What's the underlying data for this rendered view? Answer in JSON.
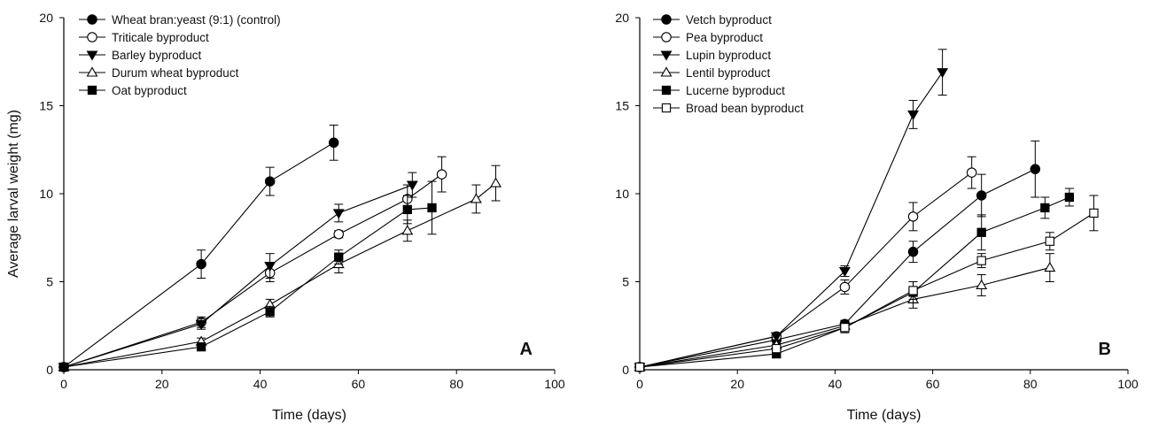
{
  "chart_data": [
    {
      "type": "line",
      "panel_label": "A",
      "xlabel": "Time (days)",
      "ylabel": "Average larval weight (mg)",
      "xlim": [
        0,
        100
      ],
      "ylim": [
        0,
        20
      ],
      "xticks": [
        0,
        20,
        40,
        60,
        80,
        100
      ],
      "yticks": [
        0,
        5,
        10,
        15,
        20
      ],
      "grid": false,
      "legend_position": "top-left",
      "series": [
        {
          "name": "Wheat bran:yeast (9:1) (control)",
          "marker": "circle-filled",
          "x": [
            0,
            28,
            42,
            55
          ],
          "y": [
            0.15,
            6.0,
            10.7,
            12.9
          ],
          "err": [
            0.1,
            0.8,
            0.8,
            1.0
          ]
        },
        {
          "name": "Triticale byproduct",
          "marker": "circle-open",
          "x": [
            0,
            28,
            42,
            56,
            70,
            77
          ],
          "y": [
            0.15,
            2.7,
            5.5,
            7.7,
            9.7,
            11.1
          ],
          "err": [
            0.1,
            0.3,
            0.5,
            0.2,
            0.8,
            1.0
          ]
        },
        {
          "name": "Barley byproduct",
          "marker": "triangle-down-filled",
          "x": [
            0,
            28,
            42,
            56,
            71
          ],
          "y": [
            0.15,
            2.6,
            5.9,
            8.9,
            10.5
          ],
          "err": [
            0.1,
            0.3,
            0.7,
            0.5,
            0.7
          ]
        },
        {
          "name": "Durum wheat byproduct",
          "marker": "triangle-up-open",
          "x": [
            0,
            28,
            42,
            56,
            70,
            84,
            88
          ],
          "y": [
            0.15,
            1.6,
            3.7,
            6.0,
            7.9,
            9.7,
            10.6
          ],
          "err": [
            0.1,
            0.2,
            0.3,
            0.5,
            0.6,
            0.8,
            1.0
          ]
        },
        {
          "name": "Oat byproduct",
          "marker": "square-filled",
          "x": [
            0,
            28,
            42,
            56,
            70,
            75
          ],
          "y": [
            0.15,
            1.3,
            3.3,
            6.4,
            9.1,
            9.2
          ],
          "err": [
            0.1,
            0.2,
            0.3,
            0.4,
            0.8,
            1.5
          ]
        }
      ]
    },
    {
      "type": "line",
      "panel_label": "B",
      "xlabel": "Time (days)",
      "ylabel": "",
      "xlim": [
        0,
        100
      ],
      "ylim": [
        0,
        20
      ],
      "xticks": [
        0,
        20,
        40,
        60,
        80,
        100
      ],
      "yticks": [
        0,
        5,
        10,
        15,
        20
      ],
      "grid": false,
      "legend_position": "top-left",
      "series": [
        {
          "name": "Vetch byproduct",
          "marker": "circle-filled",
          "x": [
            0,
            28,
            42,
            56,
            70,
            81
          ],
          "y": [
            0.15,
            1.7,
            2.6,
            6.7,
            9.9,
            11.4
          ],
          "err": [
            0.1,
            0.2,
            0.2,
            0.6,
            1.2,
            1.6
          ]
        },
        {
          "name": "Pea byproduct",
          "marker": "circle-open",
          "x": [
            0,
            28,
            42,
            56,
            68
          ],
          "y": [
            0.15,
            1.9,
            4.7,
            8.7,
            11.2
          ],
          "err": [
            0.1,
            0.2,
            0.4,
            0.8,
            0.9
          ]
        },
        {
          "name": "Lupin byproduct",
          "marker": "triangle-down-filled",
          "x": [
            0,
            28,
            42,
            56,
            62
          ],
          "y": [
            0.15,
            1.9,
            5.6,
            14.5,
            16.9
          ],
          "err": [
            0.1,
            0.2,
            0.3,
            0.8,
            1.3
          ]
        },
        {
          "name": "Lentil byproduct",
          "marker": "triangle-up-open",
          "x": [
            0,
            28,
            42,
            56,
            70,
            84
          ],
          "y": [
            0.15,
            1.4,
            2.5,
            4.0,
            4.8,
            5.8
          ],
          "err": [
            0.1,
            0.2,
            0.3,
            0.5,
            0.6,
            0.8
          ]
        },
        {
          "name": "Lucerne byproduct",
          "marker": "square-filled",
          "x": [
            0,
            28,
            42,
            56,
            70,
            83,
            88
          ],
          "y": [
            0.15,
            0.9,
            2.4,
            4.4,
            7.8,
            9.2,
            9.8
          ],
          "err": [
            0.1,
            0.2,
            0.3,
            0.6,
            1.0,
            0.6,
            0.5
          ]
        },
        {
          "name": "Broad bean byproduct",
          "marker": "square-open",
          "x": [
            0,
            28,
            42,
            56,
            70,
            84,
            93
          ],
          "y": [
            0.15,
            1.2,
            2.4,
            4.5,
            6.2,
            7.3,
            8.9
          ],
          "err": [
            0.1,
            0.2,
            0.2,
            0.5,
            0.4,
            0.5,
            1.0
          ]
        }
      ]
    }
  ]
}
